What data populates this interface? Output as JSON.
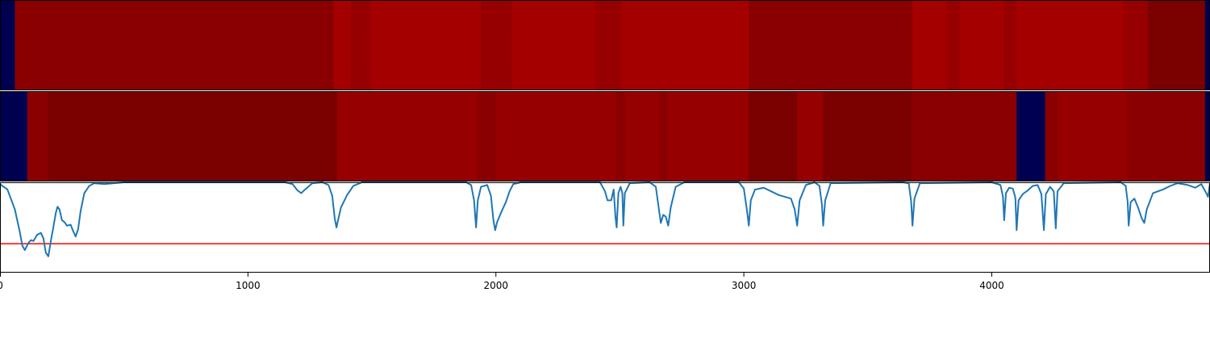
{
  "chart_data": {
    "type": "heatmap",
    "x_range": [
      0,
      4880
    ],
    "x_ticks": [
      0,
      1000,
      2000,
      3000,
      4000
    ],
    "x_tick_labels": [
      "0",
      "1000",
      "2000",
      "3000",
      "4000"
    ],
    "colors": {
      "navy": "#000050",
      "darkest_red": "#7b0000",
      "dark_red": "#8a0000",
      "red": "#960000",
      "bright_red": "#a50000",
      "line": "#1f77b4",
      "threshold": "#ff0000"
    },
    "track_1": [
      {
        "start": 0,
        "end": 60,
        "color": "navy"
      },
      {
        "start": 60,
        "end": 1345,
        "color": "dark_red"
      },
      {
        "start": 1345,
        "end": 1415,
        "color": "bright_red"
      },
      {
        "start": 1415,
        "end": 1495,
        "color": "red"
      },
      {
        "start": 1495,
        "end": 1940,
        "color": "bright_red"
      },
      {
        "start": 1940,
        "end": 2065,
        "color": "red"
      },
      {
        "start": 2065,
        "end": 2400,
        "color": "bright_red"
      },
      {
        "start": 2400,
        "end": 2505,
        "color": "red"
      },
      {
        "start": 2505,
        "end": 3020,
        "color": "bright_red"
      },
      {
        "start": 3020,
        "end": 3680,
        "color": "dark_red"
      },
      {
        "start": 3680,
        "end": 3820,
        "color": "bright_red"
      },
      {
        "start": 3820,
        "end": 3870,
        "color": "red"
      },
      {
        "start": 3870,
        "end": 4050,
        "color": "bright_red"
      },
      {
        "start": 4050,
        "end": 4100,
        "color": "red"
      },
      {
        "start": 4100,
        "end": 4530,
        "color": "bright_red"
      },
      {
        "start": 4530,
        "end": 4630,
        "color": "red"
      },
      {
        "start": 4630,
        "end": 4860,
        "color": "darkest_red"
      },
      {
        "start": 4860,
        "end": 4880,
        "color": "navy"
      }
    ],
    "track_2": [
      {
        "start": 0,
        "end": 110,
        "color": "navy"
      },
      {
        "start": 110,
        "end": 195,
        "color": "dark_red"
      },
      {
        "start": 195,
        "end": 1360,
        "color": "darkest_red"
      },
      {
        "start": 1360,
        "end": 1925,
        "color": "red"
      },
      {
        "start": 1925,
        "end": 2000,
        "color": "dark_red"
      },
      {
        "start": 2000,
        "end": 2485,
        "color": "red"
      },
      {
        "start": 2485,
        "end": 2520,
        "color": "dark_red"
      },
      {
        "start": 2520,
        "end": 2660,
        "color": "red"
      },
      {
        "start": 2660,
        "end": 2690,
        "color": "dark_red"
      },
      {
        "start": 2690,
        "end": 3020,
        "color": "red"
      },
      {
        "start": 3020,
        "end": 3215,
        "color": "darkest_red"
      },
      {
        "start": 3215,
        "end": 3320,
        "color": "red"
      },
      {
        "start": 3320,
        "end": 3675,
        "color": "darkest_red"
      },
      {
        "start": 3675,
        "end": 4100,
        "color": "dark_red"
      },
      {
        "start": 4100,
        "end": 4215,
        "color": "navy"
      },
      {
        "start": 4215,
        "end": 4265,
        "color": "dark_red"
      },
      {
        "start": 4265,
        "end": 4545,
        "color": "red"
      },
      {
        "start": 4545,
        "end": 4860,
        "color": "dark_red"
      },
      {
        "start": 4860,
        "end": 4880,
        "color": "navy"
      }
    ],
    "line_series": {
      "y_range": [
        0,
        1
      ],
      "threshold": 0.32,
      "points": [
        [
          0,
          0.98
        ],
        [
          30,
          0.92
        ],
        [
          60,
          0.7
        ],
        [
          80,
          0.45
        ],
        [
          90,
          0.3
        ],
        [
          100,
          0.25
        ],
        [
          115,
          0.33
        ],
        [
          125,
          0.36
        ],
        [
          135,
          0.35
        ],
        [
          150,
          0.42
        ],
        [
          165,
          0.44
        ],
        [
          175,
          0.38
        ],
        [
          185,
          0.22
        ],
        [
          195,
          0.18
        ],
        [
          205,
          0.35
        ],
        [
          215,
          0.5
        ],
        [
          225,
          0.66
        ],
        [
          232,
          0.73
        ],
        [
          240,
          0.7
        ],
        [
          250,
          0.58
        ],
        [
          260,
          0.56
        ],
        [
          270,
          0.52
        ],
        [
          285,
          0.53
        ],
        [
          295,
          0.46
        ],
        [
          305,
          0.4
        ],
        [
          315,
          0.48
        ],
        [
          325,
          0.68
        ],
        [
          340,
          0.88
        ],
        [
          360,
          0.96
        ],
        [
          380,
          0.99
        ],
        [
          420,
          0.98
        ],
        [
          500,
          1.0
        ],
        [
          1150,
          1.0
        ],
        [
          1180,
          0.98
        ],
        [
          1200,
          0.91
        ],
        [
          1215,
          0.88
        ],
        [
          1230,
          0.92
        ],
        [
          1260,
          0.99
        ],
        [
          1300,
          1.0
        ],
        [
          1325,
          0.97
        ],
        [
          1340,
          0.85
        ],
        [
          1350,
          0.6
        ],
        [
          1357,
          0.5
        ],
        [
          1365,
          0.6
        ],
        [
          1375,
          0.72
        ],
        [
          1400,
          0.86
        ],
        [
          1425,
          0.96
        ],
        [
          1460,
          1.0
        ],
        [
          1880,
          1.0
        ],
        [
          1900,
          0.97
        ],
        [
          1912,
          0.8
        ],
        [
          1920,
          0.5
        ],
        [
          1927,
          0.8
        ],
        [
          1940,
          0.95
        ],
        [
          1965,
          0.97
        ],
        [
          1980,
          0.85
        ],
        [
          1990,
          0.58
        ],
        [
          1997,
          0.47
        ],
        [
          2005,
          0.56
        ],
        [
          2020,
          0.66
        ],
        [
          2040,
          0.78
        ],
        [
          2055,
          0.9
        ],
        [
          2070,
          0.98
        ],
        [
          2100,
          1.0
        ],
        [
          2420,
          1.0
        ],
        [
          2440,
          0.9
        ],
        [
          2450,
          0.8
        ],
        [
          2465,
          0.8
        ],
        [
          2475,
          0.92
        ],
        [
          2482,
          0.62
        ],
        [
          2487,
          0.5
        ],
        [
          2494,
          0.88
        ],
        [
          2503,
          0.95
        ],
        [
          2510,
          0.88
        ],
        [
          2514,
          0.52
        ],
        [
          2520,
          0.88
        ],
        [
          2540,
          0.99
        ],
        [
          2620,
          1.0
        ],
        [
          2645,
          0.95
        ],
        [
          2655,
          0.75
        ],
        [
          2665,
          0.55
        ],
        [
          2675,
          0.64
        ],
        [
          2685,
          0.62
        ],
        [
          2695,
          0.52
        ],
        [
          2705,
          0.72
        ],
        [
          2725,
          0.95
        ],
        [
          2760,
          1.0
        ],
        [
          2980,
          1.0
        ],
        [
          3000,
          0.93
        ],
        [
          3012,
          0.7
        ],
        [
          3020,
          0.52
        ],
        [
          3028,
          0.8
        ],
        [
          3045,
          0.92
        ],
        [
          3080,
          0.94
        ],
        [
          3110,
          0.9
        ],
        [
          3140,
          0.86
        ],
        [
          3165,
          0.84
        ],
        [
          3190,
          0.82
        ],
        [
          3205,
          0.7
        ],
        [
          3215,
          0.52
        ],
        [
          3225,
          0.8
        ],
        [
          3250,
          0.97
        ],
        [
          3285,
          1.0
        ],
        [
          3305,
          0.96
        ],
        [
          3315,
          0.75
        ],
        [
          3320,
          0.52
        ],
        [
          3328,
          0.8
        ],
        [
          3350,
          0.99
        ],
        [
          3640,
          1.0
        ],
        [
          3665,
          0.99
        ],
        [
          3675,
          0.78
        ],
        [
          3680,
          0.52
        ],
        [
          3688,
          0.82
        ],
        [
          3710,
          0.99
        ],
        [
          4000,
          1.0
        ],
        [
          4035,
          0.97
        ],
        [
          4045,
          0.84
        ],
        [
          4050,
          0.58
        ],
        [
          4057,
          0.88
        ],
        [
          4070,
          0.94
        ],
        [
          4085,
          0.93
        ],
        [
          4095,
          0.83
        ],
        [
          4100,
          0.47
        ],
        [
          4108,
          0.8
        ],
        [
          4125,
          0.87
        ],
        [
          4145,
          0.91
        ],
        [
          4165,
          0.96
        ],
        [
          4185,
          0.97
        ],
        [
          4200,
          0.87
        ],
        [
          4210,
          0.47
        ],
        [
          4218,
          0.87
        ],
        [
          4235,
          0.95
        ],
        [
          4250,
          0.9
        ],
        [
          4258,
          0.49
        ],
        [
          4265,
          0.9
        ],
        [
          4290,
          0.99
        ],
        [
          4520,
          1.0
        ],
        [
          4540,
          0.96
        ],
        [
          4548,
          0.78
        ],
        [
          4552,
          0.52
        ],
        [
          4560,
          0.78
        ],
        [
          4575,
          0.82
        ],
        [
          4590,
          0.72
        ],
        [
          4605,
          0.6
        ],
        [
          4615,
          0.55
        ],
        [
          4625,
          0.7
        ],
        [
          4650,
          0.88
        ],
        [
          4690,
          0.92
        ],
        [
          4720,
          0.96
        ],
        [
          4750,
          0.99
        ],
        [
          4790,
          0.97
        ],
        [
          4820,
          0.94
        ],
        [
          4845,
          0.98
        ],
        [
          4865,
          0.88
        ],
        [
          4872,
          0.84
        ],
        [
          4880,
          0.99
        ]
      ]
    }
  }
}
